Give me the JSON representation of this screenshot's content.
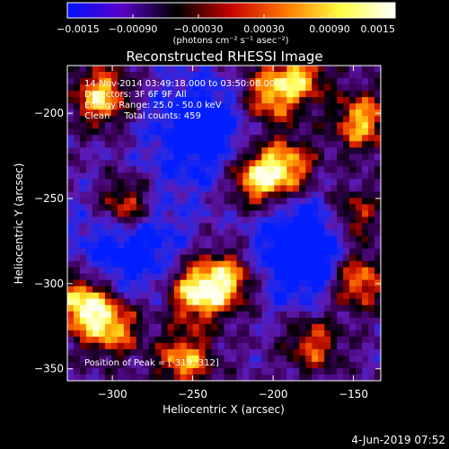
{
  "chart_data": {
    "type": "heatmap",
    "title": "Reconstructed RHESSI Image",
    "xlabel": "Heliocentric X (arcsec)",
    "ylabel": "Heliocentric Y (arcsec)",
    "xlim": [
      -328,
      -133
    ],
    "ylim": [
      -357,
      -172
    ],
    "x_ticks": [
      -300,
      -250,
      -200,
      -150
    ],
    "x_tick_labels": [
      "−300",
      "−250",
      "−200",
      "−150"
    ],
    "y_ticks": [
      -350,
      -300,
      -250,
      -200
    ],
    "y_tick_labels": [
      "−350",
      "−300",
      "−250",
      "−200"
    ],
    "colorbar": {
      "range": [
        -0.0015,
        0.0015
      ],
      "tick_values": [
        -0.0015,
        -0.0009,
        -0.0003,
        0.0003,
        0.0009,
        0.0015
      ],
      "tick_labels": [
        "−0.0015",
        "−0.00090",
        "−0.00030",
        "0.00030",
        "0.00090",
        "0.0015"
      ],
      "unit_label": "(photons cm⁻² s⁻¹ asec⁻²)",
      "colors": [
        "#0010ff",
        "#5a00c8",
        "#000000",
        "#c80000",
        "#ff7800",
        "#ffff40",
        "#ffffff"
      ]
    },
    "annotations": [
      "14-Nov-2014 03:49:18.000 to 03:50:08.000",
      "Detectors: 3F 6F 9F All",
      "Energy Range: 25.0 - 50.0 keV",
      "Clean     Total counts: 459",
      "Position of Peak = [-319,-312]"
    ],
    "peak": {
      "x": -319,
      "y": -312
    },
    "bright_regions": [
      {
        "x": -307,
        "y": -190,
        "relative_intensity": 0.85
      },
      {
        "x": -292,
        "y": -255,
        "relative_intensity": 0.9
      },
      {
        "x": -319,
        "y": -312,
        "relative_intensity": 1.0
      },
      {
        "x": -300,
        "y": -325,
        "relative_intensity": 0.75
      },
      {
        "x": -248,
        "y": -305,
        "relative_intensity": 0.95
      },
      {
        "x": -228,
        "y": -298,
        "relative_intensity": 0.75
      },
      {
        "x": -255,
        "y": -345,
        "relative_intensity": 0.7
      },
      {
        "x": -210,
        "y": -238,
        "relative_intensity": 0.95
      },
      {
        "x": -190,
        "y": -232,
        "relative_intensity": 0.7
      },
      {
        "x": -203,
        "y": -190,
        "relative_intensity": 0.7
      },
      {
        "x": -183,
        "y": -178,
        "relative_intensity": 0.65
      },
      {
        "x": -145,
        "y": -205,
        "relative_intensity": 0.75
      },
      {
        "x": -150,
        "y": -260,
        "relative_intensity": 0.5
      },
      {
        "x": -148,
        "y": -298,
        "relative_intensity": 0.85
      },
      {
        "x": -175,
        "y": -335,
        "relative_intensity": 0.5
      }
    ],
    "dark_regions": [
      {
        "x": -180,
        "y": -280,
        "relative_intensity": -0.75
      },
      {
        "x": -290,
        "y": -275,
        "relative_intensity": -0.55
      },
      {
        "x": -245,
        "y": -210,
        "relative_intensity": -0.5
      }
    ]
  },
  "footer": {
    "date": "4-Jun-2019 07:52"
  }
}
